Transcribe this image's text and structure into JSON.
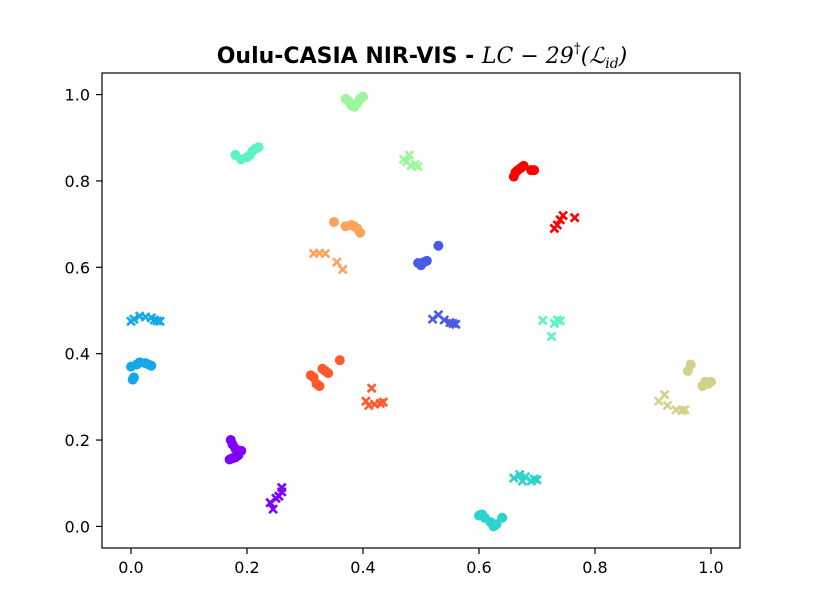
{
  "chart_data": {
    "type": "scatter",
    "title": {
      "bold": "Oulu-CASIA NIR-VIS - ",
      "math_main": "LC − 29",
      "math_sup": "†",
      "math_paren_open": "(",
      "math_script": "ℒ",
      "math_sub": "id",
      "math_paren_close": ")"
    },
    "xlabel": "",
    "ylabel": "",
    "xlim": [
      -0.05,
      1.05
    ],
    "ylim": [
      -0.05,
      1.05
    ],
    "xticks": [
      0.0,
      0.2,
      0.4,
      0.6,
      0.8,
      1.0
    ],
    "xtick_labels": [
      "0.0",
      "0.2",
      "0.4",
      "0.6",
      "0.8",
      "1.0"
    ],
    "yticks": [
      0.0,
      0.2,
      0.4,
      0.6,
      0.8,
      1.0
    ],
    "ytick_labels": [
      "0.0",
      "0.2",
      "0.4",
      "0.6",
      "0.8",
      "1.0"
    ],
    "grid": false,
    "legend": false,
    "series": [
      {
        "color": "#8000ff",
        "marker": "o",
        "points": [
          [
            0.17,
            0.155
          ],
          [
            0.175,
            0.158
          ],
          [
            0.18,
            0.16
          ],
          [
            0.185,
            0.165
          ],
          [
            0.19,
            0.175
          ],
          [
            0.18,
            0.18
          ],
          [
            0.175,
            0.19
          ],
          [
            0.172,
            0.2
          ]
        ]
      },
      {
        "color": "#8000ff",
        "marker": "x",
        "points": [
          [
            0.24,
            0.055
          ],
          [
            0.245,
            0.04
          ],
          [
            0.25,
            0.065
          ],
          [
            0.255,
            0.07
          ],
          [
            0.26,
            0.08
          ],
          [
            0.26,
            0.09
          ]
        ]
      },
      {
        "color": "#14a8e6",
        "marker": "o",
        "points": [
          [
            0.0,
            0.37
          ],
          [
            0.005,
            0.345
          ],
          [
            0.003,
            0.34
          ],
          [
            0.01,
            0.375
          ],
          [
            0.015,
            0.38
          ],
          [
            0.025,
            0.378
          ],
          [
            0.03,
            0.375
          ],
          [
            0.035,
            0.372
          ]
        ]
      },
      {
        "color": "#14a8e6",
        "marker": "x",
        "points": [
          [
            0.0,
            0.475
          ],
          [
            0.005,
            0.48
          ],
          [
            0.015,
            0.487
          ],
          [
            0.025,
            0.485
          ],
          [
            0.035,
            0.483
          ],
          [
            0.04,
            0.478
          ],
          [
            0.045,
            0.476
          ],
          [
            0.05,
            0.475
          ]
        ]
      },
      {
        "color": "#4a5ae8",
        "marker": "o",
        "points": [
          [
            0.495,
            0.61
          ],
          [
            0.5,
            0.605
          ],
          [
            0.505,
            0.612
          ],
          [
            0.51,
            0.615
          ],
          [
            0.53,
            0.65
          ]
        ]
      },
      {
        "color": "#4a5ae8",
        "marker": "x",
        "points": [
          [
            0.52,
            0.48
          ],
          [
            0.53,
            0.49
          ],
          [
            0.54,
            0.478
          ],
          [
            0.55,
            0.472
          ],
          [
            0.555,
            0.47
          ],
          [
            0.56,
            0.468
          ]
        ]
      },
      {
        "color": "#2ad3d0",
        "marker": "o",
        "points": [
          [
            0.6,
            0.025
          ],
          [
            0.605,
            0.028
          ],
          [
            0.61,
            0.02
          ],
          [
            0.62,
            0.01
          ],
          [
            0.625,
            0.0
          ],
          [
            0.63,
            0.005
          ],
          [
            0.64,
            0.02
          ]
        ]
      },
      {
        "color": "#2ad3d0",
        "marker": "x",
        "points": [
          [
            0.66,
            0.112
          ],
          [
            0.67,
            0.12
          ],
          [
            0.675,
            0.105
          ],
          [
            0.68,
            0.115
          ],
          [
            0.69,
            0.105
          ],
          [
            0.695,
            0.11
          ],
          [
            0.7,
            0.108
          ]
        ]
      },
      {
        "color": "#5cf4c4",
        "marker": "o",
        "points": [
          [
            0.18,
            0.86
          ],
          [
            0.19,
            0.85
          ],
          [
            0.2,
            0.855
          ],
          [
            0.205,
            0.86
          ],
          [
            0.21,
            0.87
          ],
          [
            0.215,
            0.875
          ],
          [
            0.22,
            0.878
          ]
        ]
      },
      {
        "color": "#5cf4c4",
        "marker": "x",
        "points": [
          [
            0.71,
            0.477
          ],
          [
            0.725,
            0.44
          ],
          [
            0.73,
            0.47
          ],
          [
            0.735,
            0.478
          ],
          [
            0.74,
            0.476
          ]
        ]
      },
      {
        "color": "#9df59c",
        "marker": "o",
        "points": [
          [
            0.37,
            0.99
          ],
          [
            0.375,
            0.985
          ],
          [
            0.38,
            0.975
          ],
          [
            0.385,
            0.972
          ],
          [
            0.39,
            0.98
          ],
          [
            0.395,
            0.99
          ],
          [
            0.4,
            0.995
          ]
        ]
      },
      {
        "color": "#9df59c",
        "marker": "x",
        "points": [
          [
            0.47,
            0.85
          ],
          [
            0.475,
            0.845
          ],
          [
            0.48,
            0.86
          ],
          [
            0.483,
            0.835
          ],
          [
            0.49,
            0.838
          ],
          [
            0.495,
            0.833
          ]
        ]
      },
      {
        "color": "#d3d28a",
        "marker": "o",
        "points": [
          [
            0.96,
            0.36
          ],
          [
            0.965,
            0.375
          ],
          [
            0.99,
            0.335
          ],
          [
            0.995,
            0.33
          ],
          [
            1.0,
            0.335
          ],
          [
            0.985,
            0.325
          ]
        ]
      },
      {
        "color": "#d3d28a",
        "marker": "x",
        "points": [
          [
            0.91,
            0.29
          ],
          [
            0.92,
            0.305
          ],
          [
            0.925,
            0.28
          ],
          [
            0.94,
            0.27
          ],
          [
            0.95,
            0.268
          ],
          [
            0.955,
            0.27
          ]
        ]
      },
      {
        "color": "#fca35c",
        "marker": "o",
        "points": [
          [
            0.35,
            0.705
          ],
          [
            0.37,
            0.695
          ],
          [
            0.38,
            0.698
          ],
          [
            0.385,
            0.695
          ],
          [
            0.39,
            0.69
          ],
          [
            0.395,
            0.68
          ]
        ]
      },
      {
        "color": "#fca35c",
        "marker": "x",
        "points": [
          [
            0.315,
            0.632
          ],
          [
            0.325,
            0.633
          ],
          [
            0.335,
            0.632
          ],
          [
            0.355,
            0.612
          ],
          [
            0.365,
            0.595
          ]
        ]
      },
      {
        "color": "#ff5a2e",
        "marker": "o",
        "points": [
          [
            0.31,
            0.35
          ],
          [
            0.315,
            0.345
          ],
          [
            0.32,
            0.33
          ],
          [
            0.325,
            0.325
          ],
          [
            0.33,
            0.365
          ],
          [
            0.335,
            0.36
          ],
          [
            0.34,
            0.355
          ],
          [
            0.36,
            0.385
          ]
        ]
      },
      {
        "color": "#ff5a2e",
        "marker": "x",
        "points": [
          [
            0.405,
            0.29
          ],
          [
            0.41,
            0.28
          ],
          [
            0.415,
            0.32
          ],
          [
            0.42,
            0.283
          ],
          [
            0.43,
            0.285
          ],
          [
            0.435,
            0.288
          ]
        ]
      },
      {
        "color": "#ff0000",
        "marker": "o",
        "points": [
          [
            0.66,
            0.81
          ],
          [
            0.663,
            0.82
          ],
          [
            0.667,
            0.825
          ],
          [
            0.672,
            0.83
          ],
          [
            0.677,
            0.835
          ],
          [
            0.69,
            0.825
          ],
          [
            0.695,
            0.825
          ]
        ]
      },
      {
        "color": "#ff0000",
        "marker": "x",
        "points": [
          [
            0.73,
            0.69
          ],
          [
            0.735,
            0.698
          ],
          [
            0.74,
            0.71
          ],
          [
            0.745,
            0.72
          ],
          [
            0.765,
            0.715
          ]
        ]
      }
    ]
  }
}
